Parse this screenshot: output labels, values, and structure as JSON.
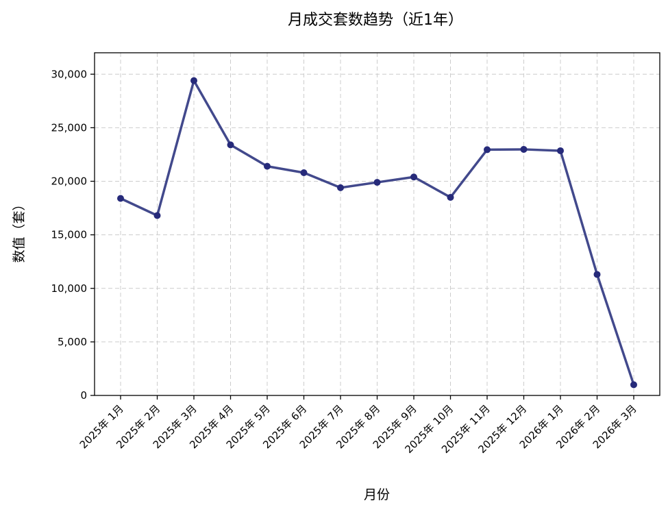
{
  "chart_data": {
    "type": "line",
    "title": "月成交套数趋势（近1年）",
    "xlabel": "月份",
    "ylabel": "数值（套）",
    "categories": [
      "2025年 1月",
      "2025年 2月",
      "2025年 3月",
      "2025年 4月",
      "2025年 5月",
      "2025年 6月",
      "2025年 7月",
      "2025年 8月",
      "2025年 9月",
      "2025年 10月",
      "2025年 11月",
      "2025年 12月",
      "2026年 1月",
      "2026年 2月",
      "2026年 3月"
    ],
    "series": [
      {
        "values": [
          18400,
          16800,
          29400,
          23400,
          21400,
          20800,
          19400,
          19900,
          20400,
          18500,
          22950,
          22980,
          22850,
          11300,
          1000
        ]
      }
    ],
    "ylim": [
      0,
      32000
    ],
    "yticks": [
      0,
      5000,
      10000,
      15000,
      20000,
      25000,
      30000
    ],
    "ytick_labels": [
      "0",
      "5,000",
      "10,000",
      "15,000",
      "20,000",
      "25,000",
      "30,000"
    ],
    "grid": true,
    "line_color": "#2e3580",
    "marker_color": "#262a7a"
  }
}
